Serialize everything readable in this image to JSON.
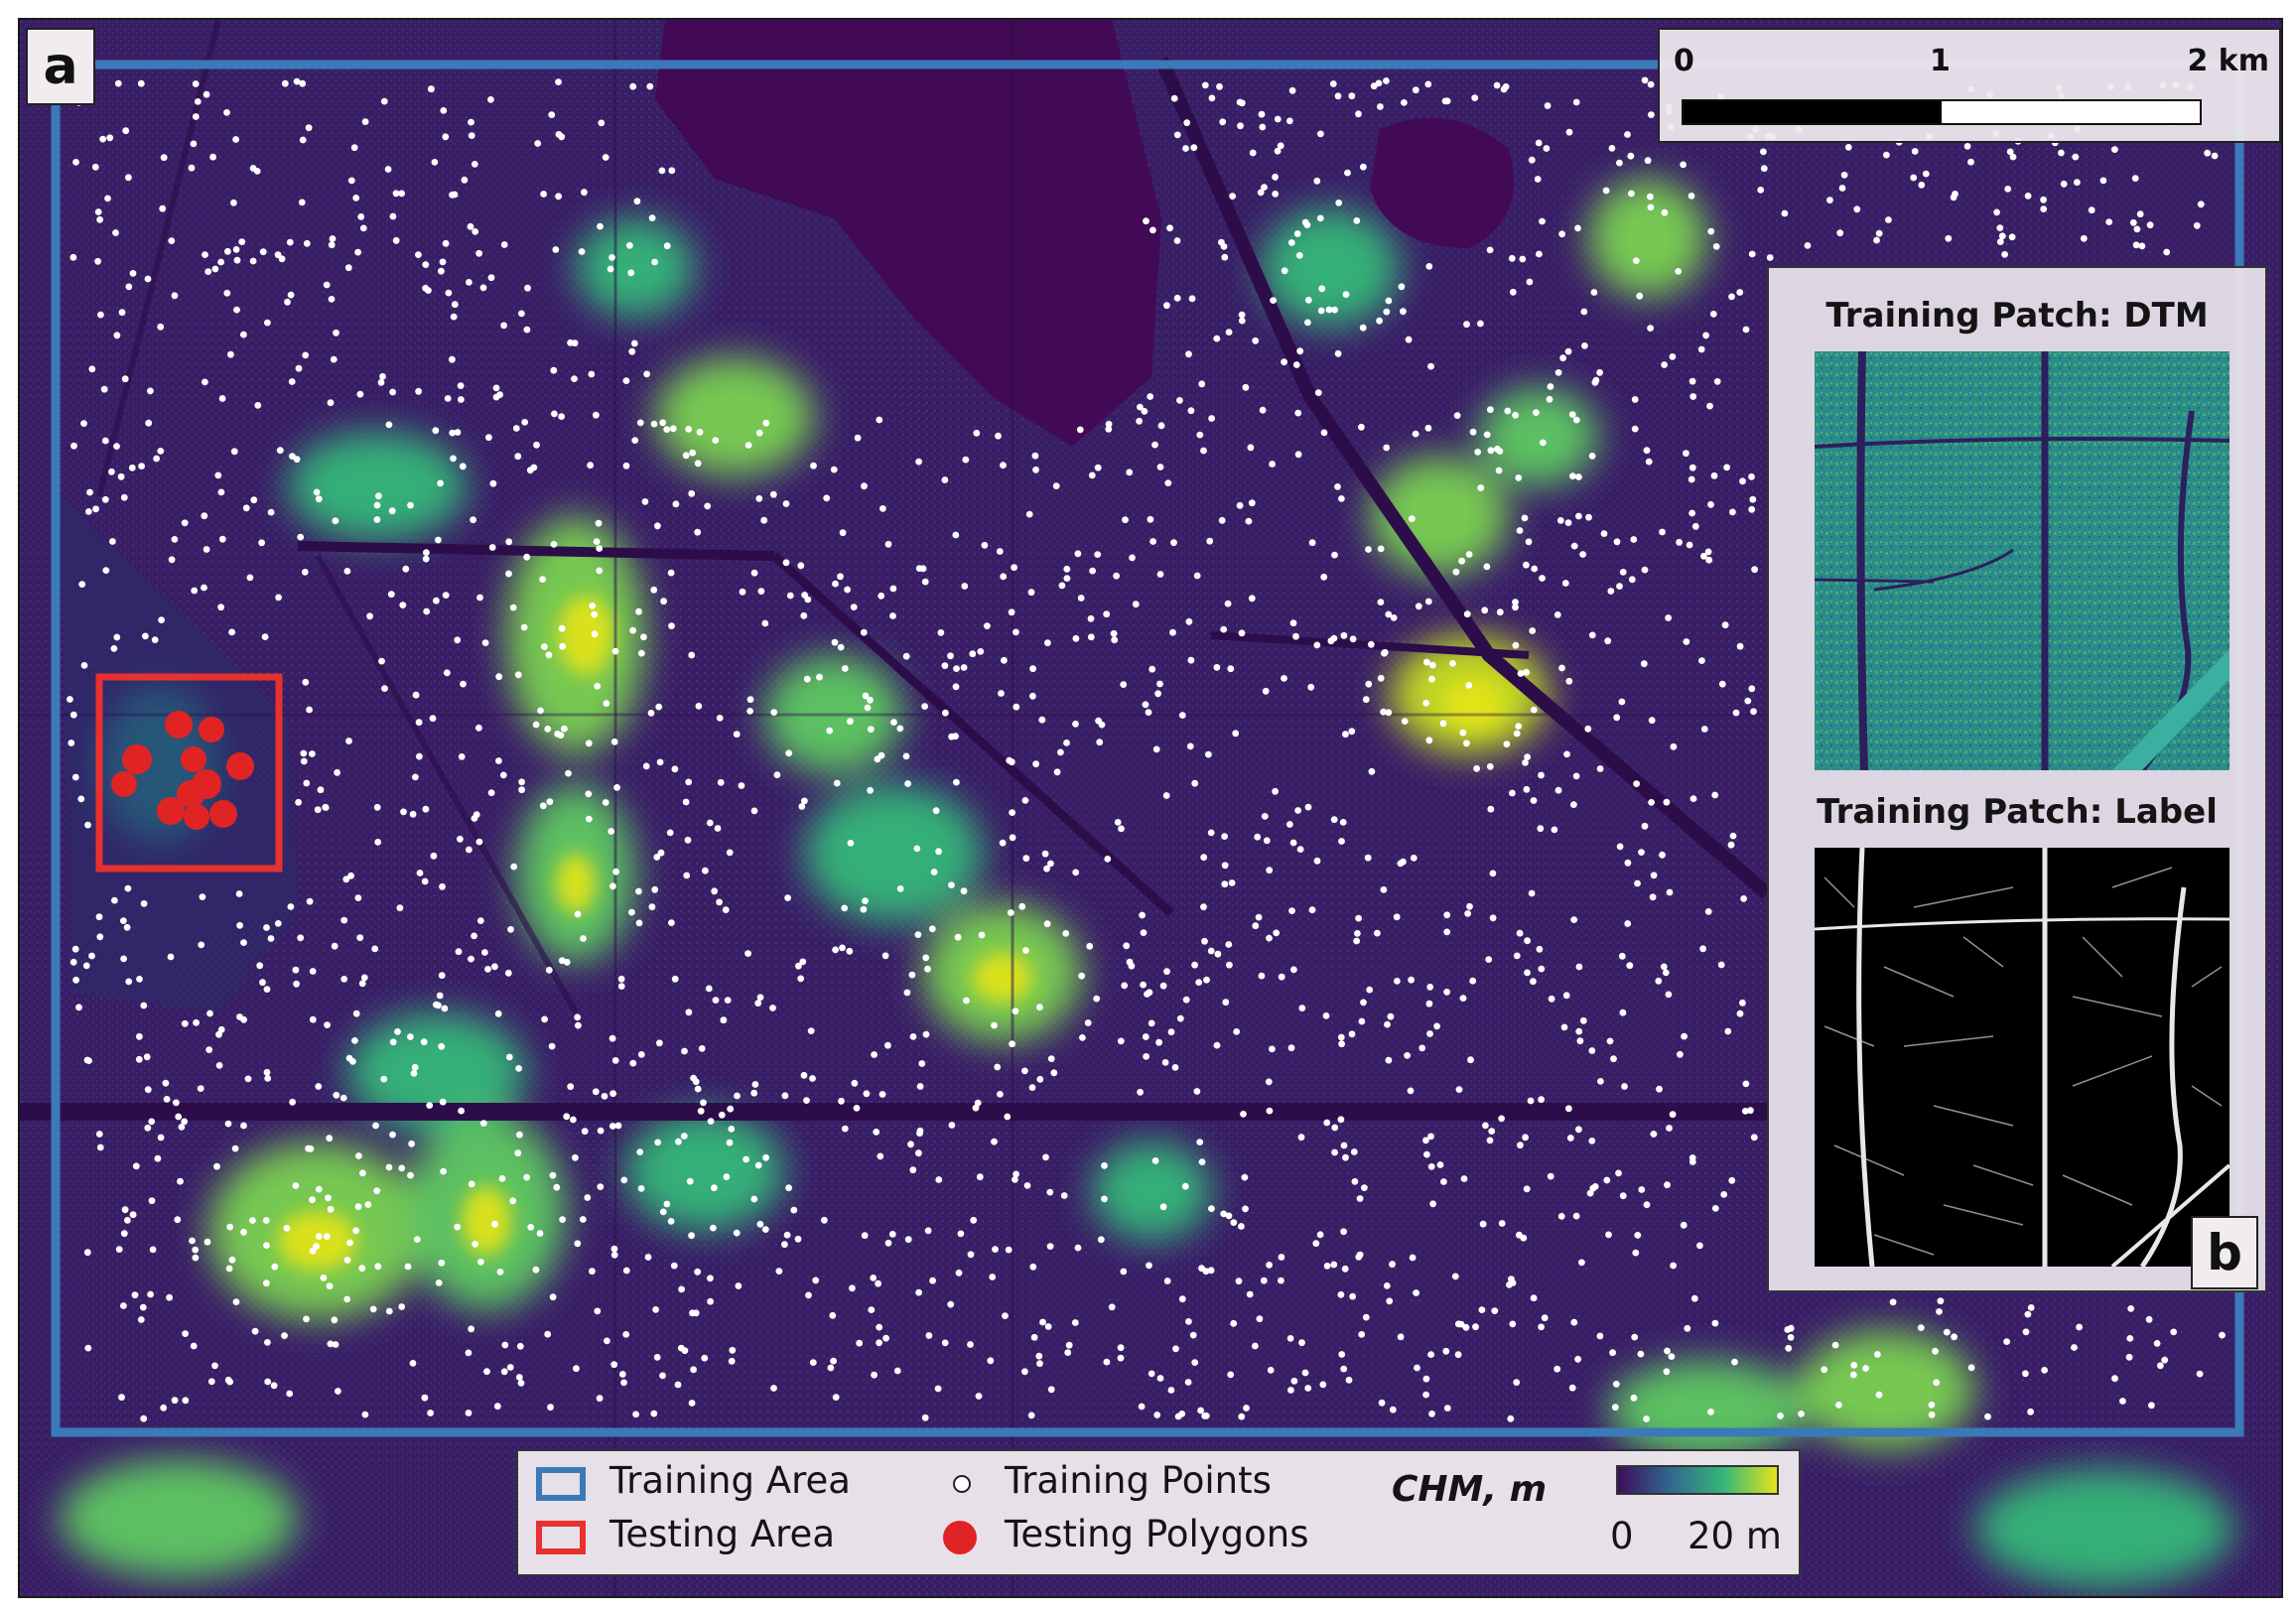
{
  "panel_labels": {
    "main": "a",
    "inset": "b"
  },
  "scale_bar": {
    "ticks": [
      "0",
      "1",
      "2 km"
    ]
  },
  "inset": {
    "dtm_title": "Training Patch: DTM",
    "label_title": "Training Patch: Label"
  },
  "legend": {
    "training_area": "Training Area",
    "testing_area": "Testing Area",
    "training_points": "Training Points",
    "testing_polygons": "Testing Polygons",
    "colorbar_title": "CHM, m",
    "colorbar_min": "0",
    "colorbar_max": "20 m"
  },
  "colors": {
    "training_area": "#3a7ab8",
    "testing_area": "#e8312f",
    "training_points": "#ffffff",
    "testing_polygons": "#e02424",
    "chm_low": "#3d0f5c",
    "chm_mid": "#21918c",
    "chm_high": "#e5e419"
  },
  "chm_range_m": [
    0,
    20
  ]
}
